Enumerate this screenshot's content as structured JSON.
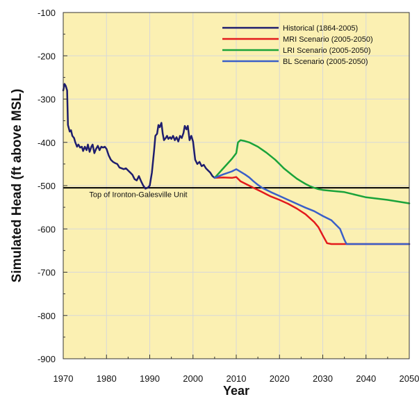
{
  "chart_data": {
    "type": "line",
    "title": "",
    "xlabel": "Year",
    "ylabel": "Simulated Head (ft above MSL)",
    "xlim": [
      1970,
      2050
    ],
    "ylim": [
      -900,
      -100
    ],
    "xticks": [
      1970,
      1980,
      1990,
      2000,
      2010,
      2020,
      2030,
      2040,
      2050
    ],
    "yticks": [
      -100,
      -200,
      -300,
      -400,
      -500,
      -600,
      -700,
      -800,
      -900
    ],
    "x_tick_labels": [
      "1970",
      "1980",
      "1990",
      "2000",
      "2010",
      "2020",
      "2030",
      "2040",
      "2050"
    ],
    "y_tick_labels": [
      "-100",
      "-200",
      "-300",
      "-400",
      "-500",
      "-600",
      "-700",
      "-800",
      "-900"
    ],
    "grid": true,
    "legend_position": "top-right",
    "plot_background": "#fbf0b2",
    "grid_color": "#d8d8d8",
    "annotations": [
      {
        "text": "Top of Ironton-Galesville Unit",
        "x": 1976,
        "y": -512,
        "reference_line_y": -505,
        "color": "#000000"
      }
    ],
    "series": [
      {
        "name": "Historical (1864-2005)",
        "color": "#1f1e6e",
        "points": [
          [
            1970.0,
            -280
          ],
          [
            1970.3,
            -265
          ],
          [
            1970.6,
            -270
          ],
          [
            1970.9,
            -280
          ],
          [
            1971.1,
            -360
          ],
          [
            1971.5,
            -375
          ],
          [
            1971.8,
            -372
          ],
          [
            1972.1,
            -385
          ],
          [
            1972.5,
            -390
          ],
          [
            1972.8,
            -400
          ],
          [
            1973.2,
            -410
          ],
          [
            1973.5,
            -405
          ],
          [
            1973.9,
            -412
          ],
          [
            1974.3,
            -410
          ],
          [
            1974.6,
            -420
          ],
          [
            1975.0,
            -410
          ],
          [
            1975.4,
            -418
          ],
          [
            1975.7,
            -405
          ],
          [
            1976.1,
            -422
          ],
          [
            1976.5,
            -410
          ],
          [
            1976.8,
            -405
          ],
          [
            1977.2,
            -425
          ],
          [
            1977.6,
            -415
          ],
          [
            1978.0,
            -408
          ],
          [
            1978.4,
            -418
          ],
          [
            1978.8,
            -410
          ],
          [
            1979.2,
            -412
          ],
          [
            1979.6,
            -410
          ],
          [
            1980.0,
            -415
          ],
          [
            1980.5,
            -430
          ],
          [
            1981.0,
            -440
          ],
          [
            1981.5,
            -445
          ],
          [
            1982.0,
            -448
          ],
          [
            1982.5,
            -450
          ],
          [
            1983.0,
            -458
          ],
          [
            1983.5,
            -460
          ],
          [
            1984.0,
            -462
          ],
          [
            1984.5,
            -460
          ],
          [
            1985.0,
            -465
          ],
          [
            1985.5,
            -470
          ],
          [
            1986.0,
            -475
          ],
          [
            1986.5,
            -485
          ],
          [
            1987.0,
            -488
          ],
          [
            1987.5,
            -478
          ],
          [
            1988.0,
            -490
          ],
          [
            1988.5,
            -500
          ],
          [
            1989.0,
            -507
          ],
          [
            1989.5,
            -505
          ],
          [
            1990.0,
            -500
          ],
          [
            1990.5,
            -470
          ],
          [
            1991.0,
            -420
          ],
          [
            1991.3,
            -385
          ],
          [
            1991.7,
            -380
          ],
          [
            1992.0,
            -360
          ],
          [
            1992.3,
            -365
          ],
          [
            1992.7,
            -355
          ],
          [
            1993.0,
            -380
          ],
          [
            1993.3,
            -395
          ],
          [
            1993.7,
            -390
          ],
          [
            1994.0,
            -385
          ],
          [
            1994.3,
            -392
          ],
          [
            1994.7,
            -388
          ],
          [
            1995.0,
            -392
          ],
          [
            1995.4,
            -385
          ],
          [
            1995.8,
            -395
          ],
          [
            1996.2,
            -388
          ],
          [
            1996.6,
            -398
          ],
          [
            1997.0,
            -385
          ],
          [
            1997.4,
            -390
          ],
          [
            1997.8,
            -378
          ],
          [
            1998.1,
            -362
          ],
          [
            1998.5,
            -370
          ],
          [
            1998.8,
            -362
          ],
          [
            1999.2,
            -395
          ],
          [
            1999.6,
            -385
          ],
          [
            2000.0,
            -398
          ],
          [
            2000.5,
            -440
          ],
          [
            2001.0,
            -450
          ],
          [
            2001.5,
            -445
          ],
          [
            2002.0,
            -455
          ],
          [
            2002.5,
            -452
          ],
          [
            2003.0,
            -460
          ],
          [
            2003.5,
            -465
          ],
          [
            2004.0,
            -470
          ],
          [
            2004.5,
            -478
          ],
          [
            2005.0,
            -482
          ]
        ]
      },
      {
        "name": "MRI Scenario (2005-2050)",
        "color": "#e31a1c",
        "points": [
          [
            2005,
            -482
          ],
          [
            2007,
            -481
          ],
          [
            2009,
            -482
          ],
          [
            2010,
            -480
          ],
          [
            2011,
            -490
          ],
          [
            2012,
            -495
          ],
          [
            2014,
            -505
          ],
          [
            2016,
            -515
          ],
          [
            2018,
            -525
          ],
          [
            2020,
            -533
          ],
          [
            2022,
            -542
          ],
          [
            2024,
            -553
          ],
          [
            2026,
            -566
          ],
          [
            2028,
            -584
          ],
          [
            2029,
            -596
          ],
          [
            2030,
            -615
          ],
          [
            2031,
            -633
          ],
          [
            2032,
            -635
          ],
          [
            2040,
            -635
          ],
          [
            2050,
            -635
          ]
        ]
      },
      {
        "name": "LRI Scenario (2005-2050)",
        "color": "#1aa33a",
        "points": [
          [
            2005,
            -482
          ],
          [
            2007,
            -460
          ],
          [
            2009,
            -438
          ],
          [
            2010,
            -425
          ],
          [
            2010.4,
            -400
          ],
          [
            2011,
            -395
          ],
          [
            2012,
            -397
          ],
          [
            2013,
            -400
          ],
          [
            2014,
            -405
          ],
          [
            2015,
            -410
          ],
          [
            2016,
            -417
          ],
          [
            2017,
            -424
          ],
          [
            2018,
            -432
          ],
          [
            2019,
            -440
          ],
          [
            2020,
            -450
          ],
          [
            2021,
            -460
          ],
          [
            2022,
            -468
          ],
          [
            2023,
            -476
          ],
          [
            2024,
            -484
          ],
          [
            2025,
            -490
          ],
          [
            2026,
            -496
          ],
          [
            2027,
            -501
          ],
          [
            2028,
            -505
          ],
          [
            2029,
            -508
          ],
          [
            2030,
            -510
          ],
          [
            2032,
            -512
          ],
          [
            2035,
            -515
          ],
          [
            2040,
            -527
          ],
          [
            2045,
            -533
          ],
          [
            2050,
            -541
          ]
        ]
      },
      {
        "name": "BL Scenario (2005-2050)",
        "color": "#3a5fc8",
        "points": [
          [
            2005,
            -482
          ],
          [
            2007,
            -474
          ],
          [
            2009,
            -467
          ],
          [
            2010,
            -462
          ],
          [
            2011,
            -468
          ],
          [
            2012,
            -474
          ],
          [
            2013,
            -481
          ],
          [
            2014,
            -490
          ],
          [
            2015,
            -498
          ],
          [
            2016,
            -505
          ],
          [
            2018,
            -515
          ],
          [
            2020,
            -524
          ],
          [
            2022,
            -533
          ],
          [
            2024,
            -542
          ],
          [
            2026,
            -551
          ],
          [
            2028,
            -559
          ],
          [
            2030,
            -570
          ],
          [
            2032,
            -580
          ],
          [
            2034,
            -600
          ],
          [
            2035,
            -625
          ],
          [
            2035.5,
            -635
          ],
          [
            2040,
            -635
          ],
          [
            2050,
            -635
          ]
        ]
      }
    ]
  }
}
